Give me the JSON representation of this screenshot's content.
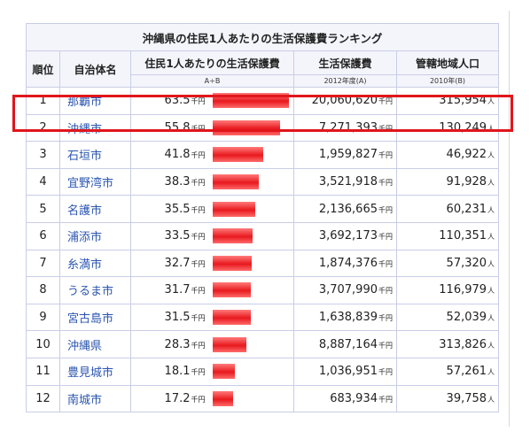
{
  "title": "沖縄県の住民1人あたりの生活保護費ランキング",
  "headers": {
    "rank": "順位",
    "municipality": "自治体名",
    "per_capita": "住民1人あたりの生活保護費",
    "welfare": "生活保護費",
    "population": "管轄地域人口"
  },
  "subheaders": {
    "per_capita": "A÷B",
    "welfare": "2012年度(A)",
    "population": "2010年(B)"
  },
  "units": {
    "per_capita": "千円",
    "welfare": "千円",
    "population": "人"
  },
  "colors": {
    "bar": "#e8191e",
    "highlight": "#e0161b",
    "link": "#2b55b0"
  },
  "rows": [
    {
      "rank": "1",
      "name": "那覇市",
      "per_capita": "63.5",
      "per_value": 63.5,
      "welfare": "20,060,620",
      "population": "315,954"
    },
    {
      "rank": "2",
      "name": "沖縄市",
      "per_capita": "55.8",
      "per_value": 55.8,
      "welfare": "7,271,393",
      "population": "130,249"
    },
    {
      "rank": "3",
      "name": "石垣市",
      "per_capita": "41.8",
      "per_value": 41.8,
      "welfare": "1,959,827",
      "population": "46,922"
    },
    {
      "rank": "4",
      "name": "宜野湾市",
      "per_capita": "38.3",
      "per_value": 38.3,
      "welfare": "3,521,918",
      "population": "91,928"
    },
    {
      "rank": "5",
      "name": "名護市",
      "per_capita": "35.5",
      "per_value": 35.5,
      "welfare": "2,136,665",
      "population": "60,231"
    },
    {
      "rank": "6",
      "name": "浦添市",
      "per_capita": "33.5",
      "per_value": 33.5,
      "welfare": "3,692,173",
      "population": "110,351"
    },
    {
      "rank": "7",
      "name": "糸満市",
      "per_capita": "32.7",
      "per_value": 32.7,
      "welfare": "1,874,376",
      "population": "57,320"
    },
    {
      "rank": "8",
      "name": "うるま市",
      "per_capita": "31.7",
      "per_value": 31.7,
      "welfare": "3,707,990",
      "population": "116,979"
    },
    {
      "rank": "9",
      "name": "宮古島市",
      "per_capita": "31.5",
      "per_value": 31.5,
      "welfare": "1,638,839",
      "population": "52,039"
    },
    {
      "rank": "10",
      "name": "沖縄県",
      "per_capita": "28.3",
      "per_value": 28.3,
      "welfare": "8,887,164",
      "population": "313,826"
    },
    {
      "rank": "11",
      "name": "豊見城市",
      "per_capita": "18.1",
      "per_value": 18.1,
      "welfare": "1,036,951",
      "population": "57,261"
    },
    {
      "rank": "12",
      "name": "南城市",
      "per_capita": "17.2",
      "per_value": 17.2,
      "welfare": "683,934",
      "population": "39,758"
    }
  ]
}
